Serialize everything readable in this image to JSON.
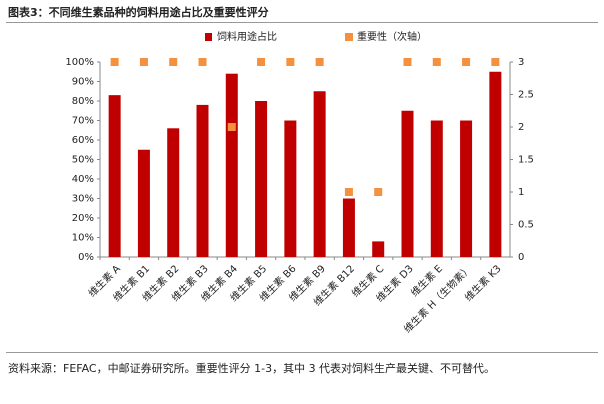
{
  "chart_data": {
    "type": "bar",
    "title": "图表3：不同维生素品种的饲料用途占比及重要性评分",
    "note": "资料来源：FEFAC，中邮证券研究所。重要性评分 1-3，其中 3 代表对饲料生产最关键、不可替代。",
    "categories": [
      "维生素 A",
      "维生素 B1",
      "维生素 B2",
      "维生素 B3",
      "维生素 B4",
      "维生素 B5",
      "维生素 B6",
      "维生素 B9",
      "维生素 B12",
      "维生素 C",
      "维生素 D3",
      "维生素 E",
      "维生素 H（生物素）",
      "维生素 K3"
    ],
    "series": [
      {
        "name": "饲料用途占比",
        "type": "bar",
        "color": "#c00000",
        "values": [
          83,
          55,
          66,
          78,
          94,
          80,
          70,
          85,
          30,
          8,
          75,
          70,
          70,
          95
        ]
      },
      {
        "name": "重要性（次轴）",
        "type": "scatter",
        "axis": "y2",
        "color": "#f4913e",
        "values": [
          3,
          3,
          3,
          3,
          2,
          3,
          3,
          3,
          1,
          1,
          3,
          3,
          3,
          3
        ]
      }
    ],
    "ylim": [
      0,
      100
    ],
    "yticks": [
      {
        "value": 0,
        "label": "0%"
      },
      {
        "value": 10,
        "label": "10%"
      },
      {
        "value": 20,
        "label": "20%"
      },
      {
        "value": 30,
        "label": "30%"
      },
      {
        "value": 40,
        "label": "40%"
      },
      {
        "value": 50,
        "label": "50%"
      },
      {
        "value": 60,
        "label": "60%"
      },
      {
        "value": 70,
        "label": "70%"
      },
      {
        "value": 80,
        "label": "80%"
      },
      {
        "value": 90,
        "label": "90%"
      },
      {
        "value": 100,
        "label": "100%"
      }
    ],
    "y2lim": [
      0,
      3
    ],
    "y2ticks": [
      0,
      0.5,
      1,
      1.5,
      2,
      2.5,
      3
    ],
    "grid": false,
    "legend": "top"
  }
}
